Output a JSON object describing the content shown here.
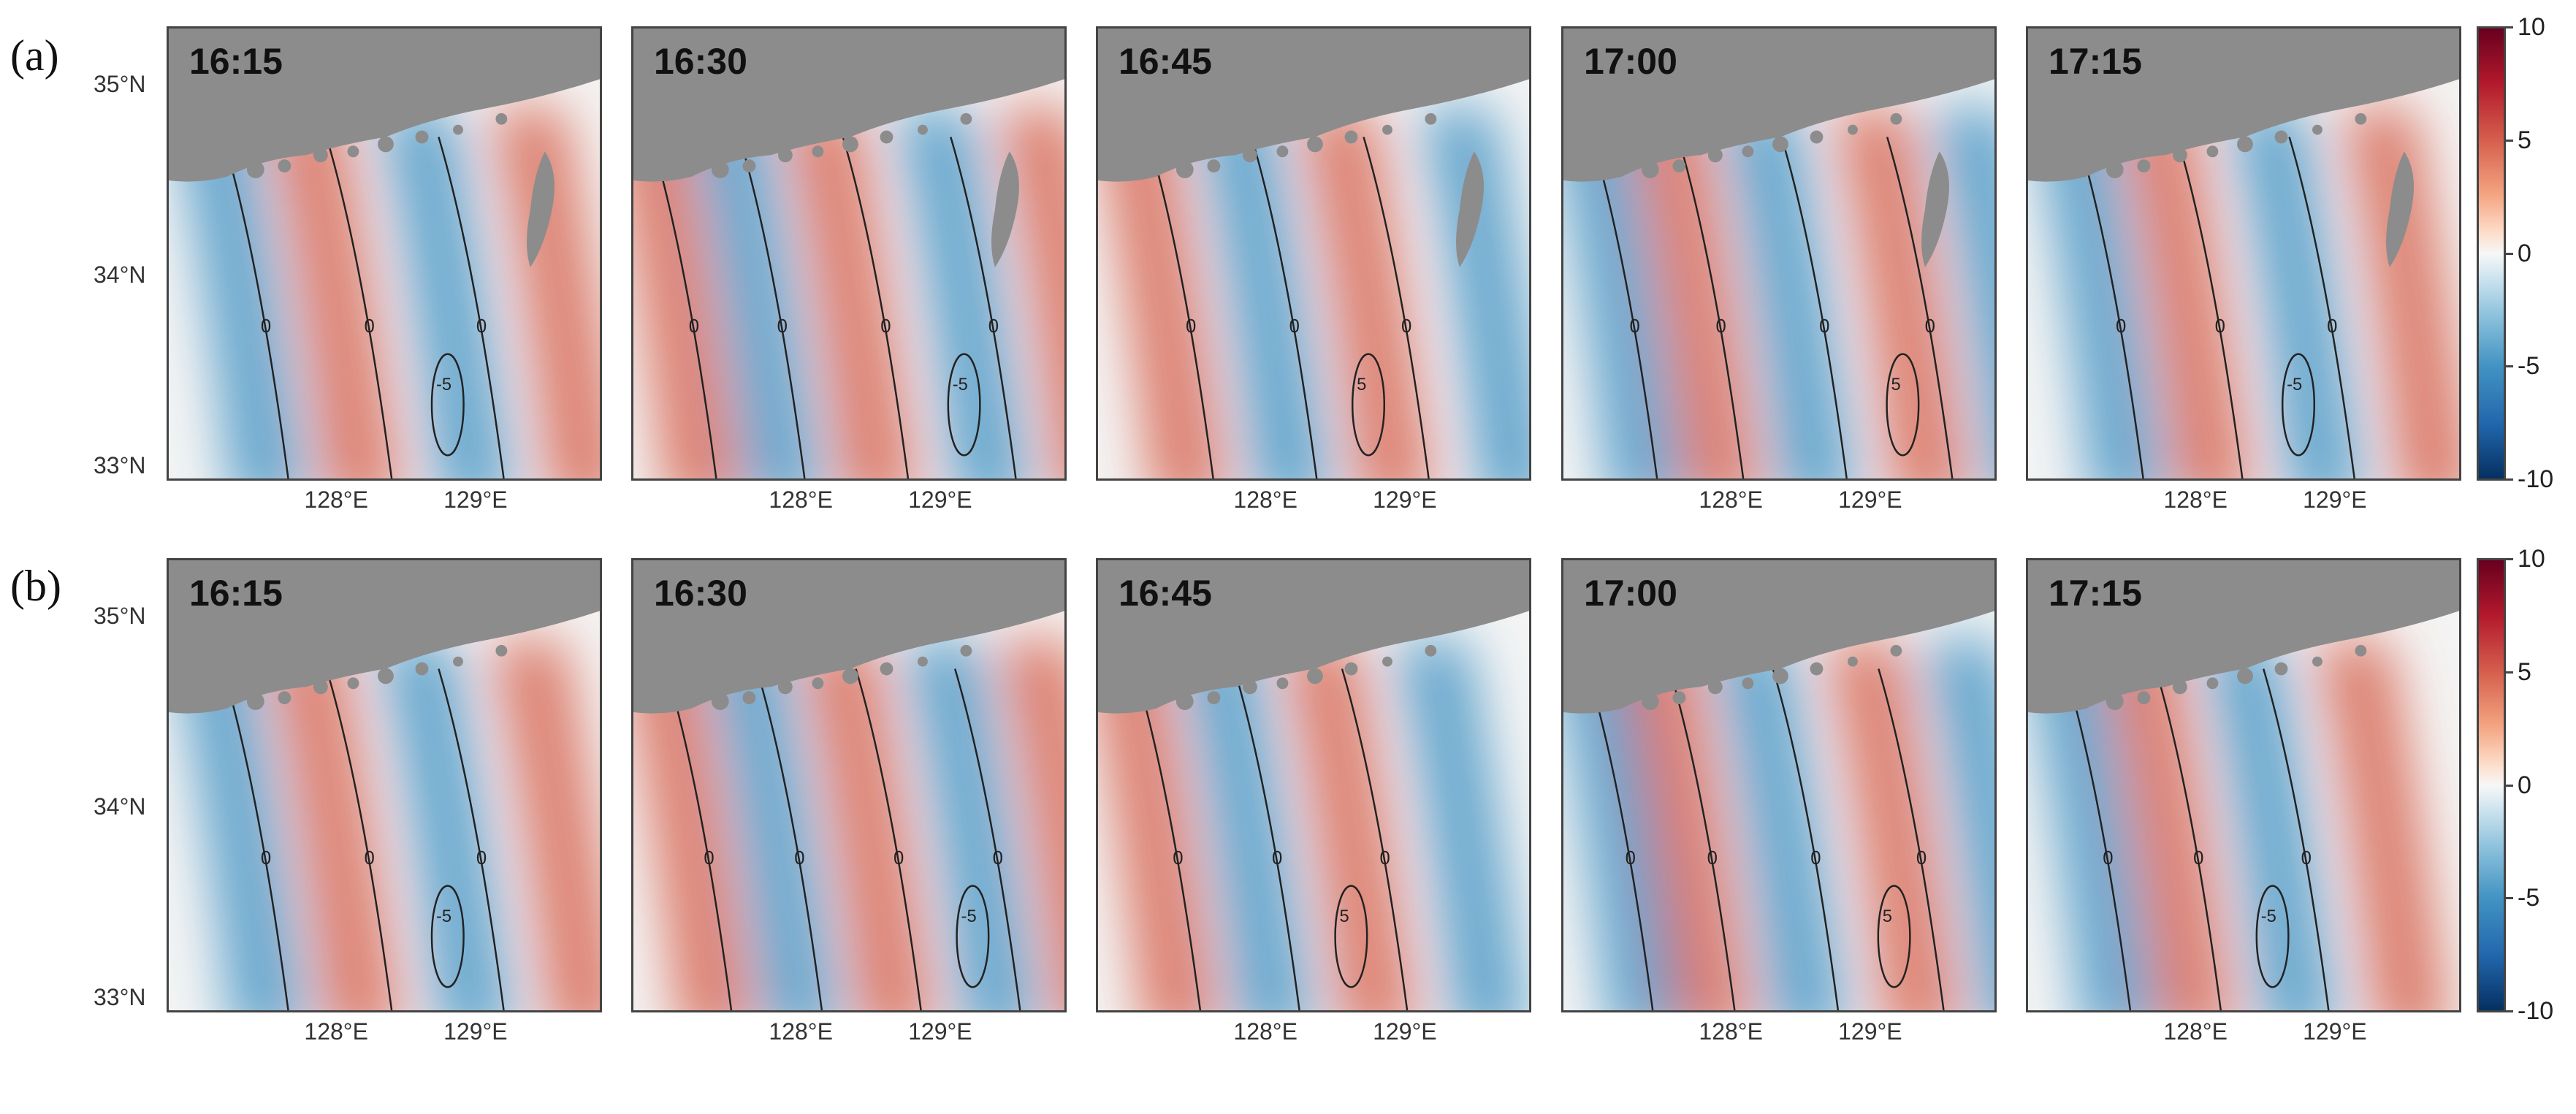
{
  "rows": [
    {
      "label": "(a)",
      "times": [
        "16:15",
        "16:30",
        "16:45",
        "17:00",
        "17:15"
      ]
    },
    {
      "label": "(b)",
      "times": [
        "16:15",
        "16:30",
        "16:45",
        "17:00",
        "17:15"
      ]
    }
  ],
  "axes": {
    "lat_labels": [
      "35°N",
      "34°N",
      "33°N"
    ],
    "lon_labels": [
      "128°E",
      "129°E"
    ]
  },
  "colorbar": {
    "ticks": [
      "10",
      "5",
      "0",
      "-5",
      "-10"
    ],
    "colors": [
      "#67001f",
      "#b2182b",
      "#f7f7f7",
      "#2166ac",
      "#053061"
    ]
  },
  "contour_labels": {
    "zero": "0",
    "minus5": "-5",
    "plus5": "5"
  },
  "colors": {
    "land": "#8c8c8c",
    "positive": "#d6604d",
    "negative": "#4393c3",
    "neutral": "#f4f4f4"
  }
}
